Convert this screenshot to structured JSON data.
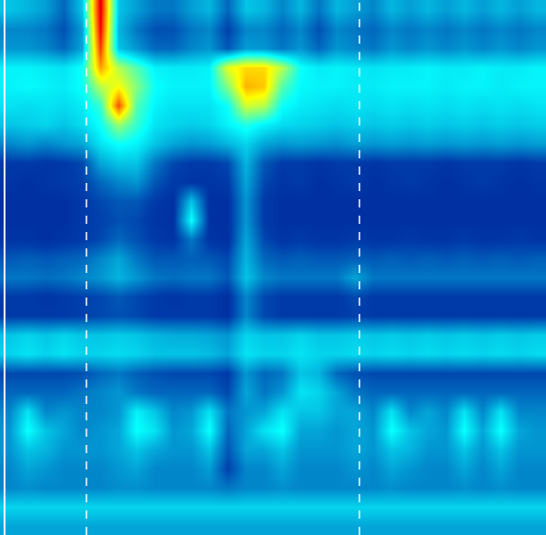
{
  "chart_data": {
    "type": "heatmap",
    "x": [
      0,
      1,
      2,
      3,
      4,
      5,
      6,
      7,
      8,
      9,
      10,
      11,
      12,
      13,
      14,
      15,
      16,
      17,
      18,
      19,
      20,
      21,
      22,
      23,
      24,
      25,
      26,
      27,
      28,
      29
    ],
    "y": [
      0,
      1,
      2,
      3,
      4,
      5,
      6,
      7,
      8,
      9,
      10,
      11,
      12,
      13,
      14,
      15,
      16,
      17,
      18,
      19,
      20,
      21,
      22,
      23,
      24,
      25,
      26,
      27
    ],
    "xlim": [
      -0.5,
      29.5
    ],
    "ylim": [
      27.5,
      -0.5
    ],
    "zlim": [
      0,
      1
    ],
    "tick_labels": false,
    "grid": false,
    "vlines": [
      {
        "x": -0.25,
        "line_style": "solid"
      },
      {
        "x": 4.25,
        "line_style": "dash"
      },
      {
        "x": 19.25,
        "line_style": "dash"
      }
    ],
    "z": [
      [
        0.3,
        0.28,
        0.25,
        0.18,
        0.3,
        0.9,
        0.3,
        0.25,
        0.2,
        0.2,
        0.25,
        0.28,
        0.18,
        0.3,
        0.28,
        0.22,
        0.28,
        0.2,
        0.28,
        0.25,
        0.22,
        0.28,
        0.25,
        0.28,
        0.25,
        0.28,
        0.25,
        0.28,
        0.25,
        0.28
      ],
      [
        0.22,
        0.22,
        0.2,
        0.15,
        0.25,
        0.88,
        0.28,
        0.2,
        0.15,
        0.15,
        0.2,
        0.22,
        0.13,
        0.22,
        0.22,
        0.18,
        0.22,
        0.15,
        0.22,
        0.2,
        0.18,
        0.22,
        0.2,
        0.22,
        0.2,
        0.22,
        0.2,
        0.22,
        0.2,
        0.22
      ],
      [
        0.24,
        0.24,
        0.22,
        0.18,
        0.26,
        0.82,
        0.3,
        0.24,
        0.18,
        0.18,
        0.22,
        0.24,
        0.16,
        0.25,
        0.24,
        0.2,
        0.24,
        0.18,
        0.24,
        0.22,
        0.2,
        0.24,
        0.22,
        0.24,
        0.22,
        0.24,
        0.22,
        0.24,
        0.22,
        0.24
      ],
      [
        0.36,
        0.36,
        0.35,
        0.34,
        0.38,
        0.72,
        0.55,
        0.45,
        0.36,
        0.35,
        0.35,
        0.36,
        0.6,
        0.66,
        0.66,
        0.55,
        0.38,
        0.35,
        0.36,
        0.35,
        0.34,
        0.35,
        0.35,
        0.36,
        0.35,
        0.35,
        0.36,
        0.35,
        0.35,
        0.36
      ],
      [
        0.36,
        0.37,
        0.36,
        0.35,
        0.38,
        0.55,
        0.62,
        0.5,
        0.38,
        0.36,
        0.36,
        0.36,
        0.5,
        0.7,
        0.68,
        0.45,
        0.37,
        0.36,
        0.36,
        0.35,
        0.35,
        0.36,
        0.36,
        0.36,
        0.35,
        0.36,
        0.36,
        0.35,
        0.36,
        0.36
      ],
      [
        0.34,
        0.33,
        0.34,
        0.33,
        0.35,
        0.42,
        0.8,
        0.45,
        0.36,
        0.34,
        0.34,
        0.34,
        0.38,
        0.58,
        0.55,
        0.38,
        0.35,
        0.34,
        0.33,
        0.34,
        0.33,
        0.34,
        0.33,
        0.34,
        0.33,
        0.34,
        0.33,
        0.34,
        0.33,
        0.34
      ],
      [
        0.3,
        0.31,
        0.32,
        0.3,
        0.33,
        0.38,
        0.52,
        0.42,
        0.34,
        0.32,
        0.31,
        0.32,
        0.36,
        0.4,
        0.36,
        0.33,
        0.32,
        0.31,
        0.3,
        0.31,
        0.3,
        0.31,
        0.3,
        0.31,
        0.3,
        0.31,
        0.3,
        0.31,
        0.3,
        0.31
      ],
      [
        0.22,
        0.24,
        0.22,
        0.24,
        0.26,
        0.34,
        0.38,
        0.36,
        0.3,
        0.26,
        0.24,
        0.25,
        0.28,
        0.32,
        0.26,
        0.24,
        0.25,
        0.24,
        0.23,
        0.25,
        0.24,
        0.25,
        0.24,
        0.25,
        0.24,
        0.25,
        0.24,
        0.25,
        0.24,
        0.25
      ],
      [
        0.12,
        0.12,
        0.11,
        0.12,
        0.14,
        0.26,
        0.3,
        0.3,
        0.2,
        0.14,
        0.12,
        0.12,
        0.14,
        0.28,
        0.16,
        0.12,
        0.12,
        0.11,
        0.12,
        0.12,
        0.11,
        0.12,
        0.12,
        0.12,
        0.11,
        0.12,
        0.12,
        0.12,
        0.11,
        0.12
      ],
      [
        0.11,
        0.1,
        0.11,
        0.12,
        0.13,
        0.18,
        0.22,
        0.24,
        0.16,
        0.12,
        0.11,
        0.11,
        0.12,
        0.26,
        0.14,
        0.11,
        0.12,
        0.1,
        0.11,
        0.12,
        0.1,
        0.11,
        0.12,
        0.11,
        0.1,
        0.11,
        0.12,
        0.11,
        0.1,
        0.11
      ],
      [
        0.1,
        0.1,
        0.1,
        0.1,
        0.12,
        0.14,
        0.16,
        0.16,
        0.12,
        0.1,
        0.3,
        0.1,
        0.1,
        0.24,
        0.12,
        0.1,
        0.1,
        0.1,
        0.1,
        0.1,
        0.1,
        0.1,
        0.1,
        0.1,
        0.1,
        0.1,
        0.1,
        0.1,
        0.1,
        0.1
      ],
      [
        0.1,
        0.1,
        0.1,
        0.1,
        0.12,
        0.13,
        0.15,
        0.14,
        0.11,
        0.1,
        0.38,
        0.1,
        0.1,
        0.24,
        0.12,
        0.1,
        0.1,
        0.1,
        0.1,
        0.1,
        0.1,
        0.1,
        0.1,
        0.1,
        0.1,
        0.1,
        0.1,
        0.1,
        0.1,
        0.1
      ],
      [
        0.11,
        0.11,
        0.1,
        0.11,
        0.12,
        0.14,
        0.18,
        0.15,
        0.12,
        0.11,
        0.2,
        0.11,
        0.1,
        0.26,
        0.14,
        0.11,
        0.12,
        0.11,
        0.11,
        0.12,
        0.11,
        0.11,
        0.12,
        0.11,
        0.11,
        0.12,
        0.11,
        0.11,
        0.12,
        0.11
      ],
      [
        0.16,
        0.17,
        0.16,
        0.17,
        0.18,
        0.22,
        0.26,
        0.2,
        0.16,
        0.16,
        0.17,
        0.16,
        0.14,
        0.28,
        0.18,
        0.16,
        0.17,
        0.16,
        0.16,
        0.17,
        0.16,
        0.17,
        0.16,
        0.17,
        0.16,
        0.17,
        0.16,
        0.17,
        0.16,
        0.17
      ],
      [
        0.2,
        0.2,
        0.19,
        0.2,
        0.22,
        0.24,
        0.28,
        0.24,
        0.2,
        0.19,
        0.2,
        0.2,
        0.16,
        0.3,
        0.22,
        0.2,
        0.2,
        0.2,
        0.2,
        0.26,
        0.2,
        0.2,
        0.2,
        0.2,
        0.2,
        0.2,
        0.2,
        0.2,
        0.2,
        0.2
      ],
      [
        0.12,
        0.12,
        0.11,
        0.12,
        0.13,
        0.14,
        0.16,
        0.14,
        0.12,
        0.11,
        0.12,
        0.12,
        0.1,
        0.22,
        0.14,
        0.12,
        0.12,
        0.12,
        0.12,
        0.14,
        0.12,
        0.12,
        0.12,
        0.12,
        0.12,
        0.12,
        0.12,
        0.12,
        0.12,
        0.12
      ],
      [
        0.12,
        0.12,
        0.12,
        0.12,
        0.13,
        0.14,
        0.15,
        0.14,
        0.12,
        0.12,
        0.12,
        0.12,
        0.1,
        0.22,
        0.14,
        0.12,
        0.12,
        0.12,
        0.12,
        0.13,
        0.12,
        0.12,
        0.12,
        0.12,
        0.12,
        0.12,
        0.12,
        0.12,
        0.12,
        0.12
      ],
      [
        0.3,
        0.32,
        0.3,
        0.32,
        0.3,
        0.3,
        0.31,
        0.3,
        0.28,
        0.27,
        0.27,
        0.26,
        0.24,
        0.32,
        0.3,
        0.3,
        0.32,
        0.3,
        0.3,
        0.31,
        0.3,
        0.31,
        0.3,
        0.31,
        0.3,
        0.31,
        0.3,
        0.31,
        0.3,
        0.31
      ],
      [
        0.32,
        0.34,
        0.32,
        0.34,
        0.32,
        0.32,
        0.33,
        0.32,
        0.3,
        0.3,
        0.3,
        0.29,
        0.26,
        0.34,
        0.32,
        0.32,
        0.34,
        0.32,
        0.32,
        0.33,
        0.32,
        0.33,
        0.32,
        0.33,
        0.32,
        0.33,
        0.32,
        0.33,
        0.32,
        0.33
      ],
      [
        0.14,
        0.14,
        0.14,
        0.14,
        0.15,
        0.18,
        0.2,
        0.17,
        0.15,
        0.14,
        0.14,
        0.14,
        0.12,
        0.24,
        0.18,
        0.2,
        0.3,
        0.28,
        0.18,
        0.15,
        0.14,
        0.14,
        0.14,
        0.14,
        0.14,
        0.14,
        0.14,
        0.14,
        0.14,
        0.14
      ],
      [
        0.18,
        0.18,
        0.18,
        0.18,
        0.2,
        0.22,
        0.24,
        0.2,
        0.18,
        0.18,
        0.18,
        0.18,
        0.14,
        0.26,
        0.2,
        0.24,
        0.34,
        0.32,
        0.26,
        0.2,
        0.18,
        0.18,
        0.18,
        0.18,
        0.18,
        0.18,
        0.18,
        0.18,
        0.18,
        0.18
      ],
      [
        0.22,
        0.34,
        0.22,
        0.24,
        0.22,
        0.22,
        0.24,
        0.36,
        0.3,
        0.22,
        0.24,
        0.34,
        0.2,
        0.24,
        0.26,
        0.34,
        0.3,
        0.3,
        0.26,
        0.26,
        0.22,
        0.34,
        0.22,
        0.26,
        0.22,
        0.34,
        0.22,
        0.34,
        0.22,
        0.22
      ],
      [
        0.24,
        0.38,
        0.3,
        0.26,
        0.22,
        0.24,
        0.26,
        0.38,
        0.34,
        0.24,
        0.26,
        0.38,
        0.18,
        0.26,
        0.34,
        0.38,
        0.26,
        0.26,
        0.24,
        0.26,
        0.24,
        0.38,
        0.3,
        0.26,
        0.24,
        0.38,
        0.26,
        0.38,
        0.26,
        0.24
      ],
      [
        0.24,
        0.3,
        0.28,
        0.24,
        0.24,
        0.24,
        0.26,
        0.3,
        0.26,
        0.24,
        0.24,
        0.3,
        0.16,
        0.26,
        0.26,
        0.3,
        0.24,
        0.24,
        0.24,
        0.26,
        0.24,
        0.3,
        0.28,
        0.24,
        0.24,
        0.3,
        0.24,
        0.3,
        0.24,
        0.24
      ],
      [
        0.22,
        0.26,
        0.24,
        0.22,
        0.22,
        0.22,
        0.24,
        0.26,
        0.22,
        0.22,
        0.22,
        0.25,
        0.13,
        0.22,
        0.22,
        0.26,
        0.22,
        0.22,
        0.22,
        0.24,
        0.22,
        0.26,
        0.24,
        0.22,
        0.22,
        0.26,
        0.22,
        0.26,
        0.22,
        0.22
      ],
      [
        0.22,
        0.23,
        0.22,
        0.22,
        0.22,
        0.22,
        0.23,
        0.23,
        0.22,
        0.22,
        0.22,
        0.22,
        0.2,
        0.22,
        0.22,
        0.23,
        0.22,
        0.22,
        0.22,
        0.22,
        0.22,
        0.23,
        0.22,
        0.22,
        0.22,
        0.23,
        0.22,
        0.23,
        0.22,
        0.22
      ],
      [
        0.32,
        0.32,
        0.32,
        0.32,
        0.32,
        0.32,
        0.32,
        0.32,
        0.32,
        0.32,
        0.32,
        0.32,
        0.32,
        0.32,
        0.32,
        0.32,
        0.32,
        0.32,
        0.32,
        0.32,
        0.32,
        0.32,
        0.32,
        0.32,
        0.32,
        0.32,
        0.32,
        0.32,
        0.32,
        0.32
      ],
      [
        0.26,
        0.26,
        0.26,
        0.26,
        0.26,
        0.26,
        0.26,
        0.26,
        0.26,
        0.26,
        0.26,
        0.26,
        0.26,
        0.26,
        0.26,
        0.26,
        0.26,
        0.26,
        0.26,
        0.26,
        0.26,
        0.26,
        0.26,
        0.26,
        0.26,
        0.26,
        0.26,
        0.26,
        0.26,
        0.26
      ]
    ]
  }
}
